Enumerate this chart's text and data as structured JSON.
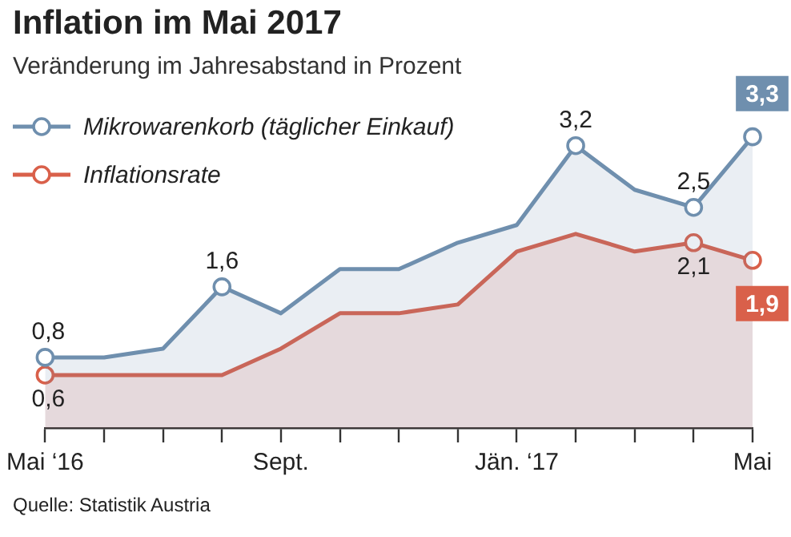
{
  "chart_data": {
    "type": "area",
    "title": "Inflation im Mai 2017",
    "subtitle": "Veränderung im Jahresabstand in Prozent",
    "categories": [
      "Mai ‘16",
      null,
      null,
      null,
      "Sept.",
      null,
      null,
      null,
      "Jän. ‘17",
      null,
      null,
      null,
      "Mai"
    ],
    "series": [
      {
        "name": "Mikrowarenkorb (täglicher Einkauf)",
        "color": "#6f8fae",
        "values": [
          0.8,
          0.8,
          0.9,
          1.6,
          1.3,
          1.8,
          1.8,
          2.1,
          2.3,
          3.2,
          2.7,
          2.5,
          3.3
        ],
        "value_labels": [
          "0,8",
          null,
          null,
          "1,6",
          null,
          null,
          null,
          null,
          null,
          "3,2",
          null,
          "2,5",
          "3,3"
        ]
      },
      {
        "name": "Inflationsrate",
        "color": "#d9604a",
        "values": [
          0.6,
          0.6,
          0.6,
          0.6,
          0.9,
          1.3,
          1.3,
          1.4,
          2.0,
          2.2,
          2.0,
          2.1,
          1.9
        ],
        "value_labels": [
          "0,6",
          null,
          null,
          null,
          null,
          null,
          null,
          null,
          null,
          null,
          null,
          "2,1",
          "1,9"
        ]
      }
    ],
    "legend": "top left",
    "annotations": [
      "Quelle: Statistik Austria"
    ]
  }
}
